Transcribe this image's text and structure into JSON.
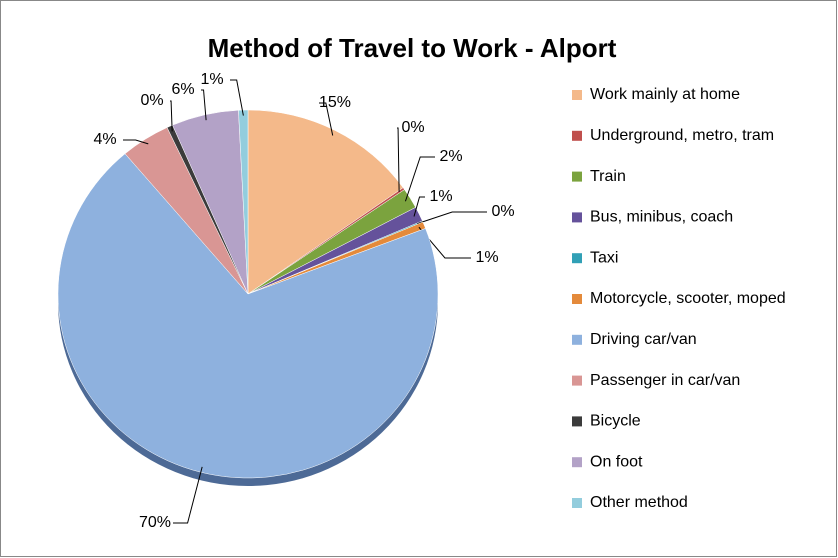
{
  "chart_data": {
    "type": "pie",
    "title": "Method of Travel to Work - Alport",
    "categories": [
      "Work mainly at home",
      "Underground, metro, tram",
      "Train",
      "Bus, minibus, coach",
      "Taxi",
      "Motorcycle, scooter, moped",
      "Driving car/van",
      "Passenger in car/van",
      "Bicycle",
      "On foot",
      "Other method"
    ],
    "values": [
      15.2,
      0.2,
      1.8,
      1.3,
      0.1,
      0.6,
      69.6,
      4.2,
      0.5,
      5.7,
      0.8
    ],
    "value_labels": [
      "15%",
      "0%",
      "2%",
      "1%",
      "0%",
      "1%",
      "70%",
      "4%",
      "0%",
      "6%",
      "1%"
    ],
    "colors": [
      "#f4b98a",
      "#c0504d",
      "#7ba33e",
      "#65529b",
      "#31a0b6",
      "#e48a3b",
      "#8eb1de",
      "#d99694",
      "#3b3b3b",
      "#b3a2c7",
      "#93cddd"
    ],
    "legend": "right"
  }
}
